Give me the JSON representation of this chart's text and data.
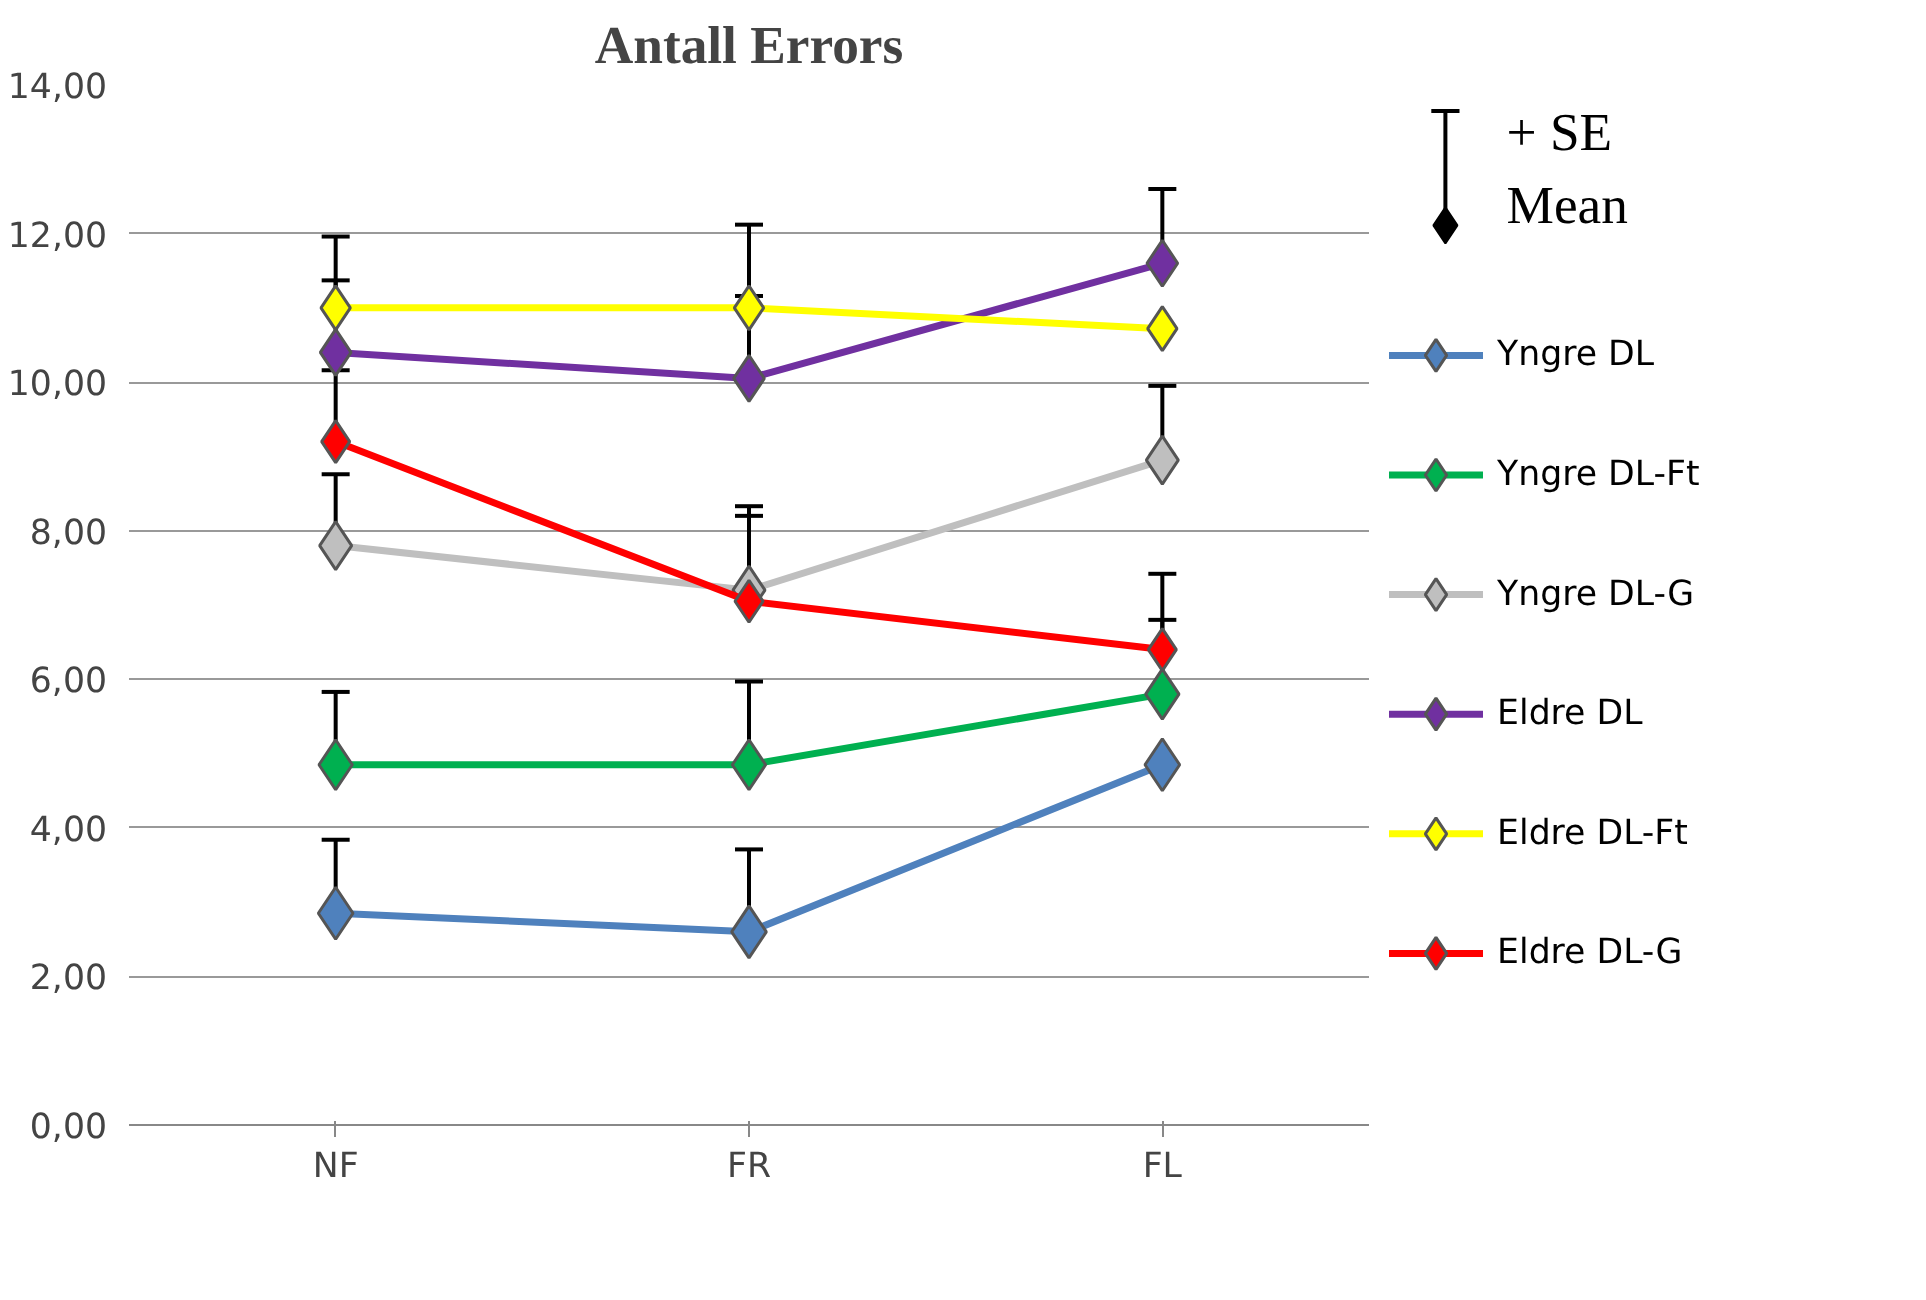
{
  "chart_data": {
    "type": "line",
    "title": "Antall Errors",
    "categories": [
      "NF",
      "FR",
      "FL"
    ],
    "ylim": [
      0,
      14
    ],
    "yticks": [
      {
        "value": 0,
        "label": "0,00"
      },
      {
        "value": 2,
        "label": "2,00"
      },
      {
        "value": 4,
        "label": "4,00"
      },
      {
        "value": 6,
        "label": "6,00"
      },
      {
        "value": 8,
        "label": "8,00"
      },
      {
        "value": 10,
        "label": "10,00"
      },
      {
        "value": 12,
        "label": "12,00"
      },
      {
        "value": 14,
        "label": "14,00"
      }
    ],
    "grid": "y",
    "legend": "right",
    "marker": "diamond",
    "annotations": [
      "+ SE",
      "Mean"
    ],
    "series": [
      {
        "name": "Yngre DL",
        "color": "#4f81bd",
        "values": [
          2.85,
          2.6,
          4.85
        ],
        "errors": [
          [
            2.85,
            3.84
          ],
          [
            2.6,
            3.71
          ],
          null
        ]
      },
      {
        "name": "Yngre DL-Ft",
        "color": "#00b050",
        "values": [
          4.85,
          4.85,
          5.8
        ],
        "errors": [
          [
            4.85,
            5.83
          ],
          [
            4.85,
            5.97
          ],
          [
            5.8,
            6.8
          ]
        ]
      },
      {
        "name": "Yngre DL-G",
        "color": "#bfbfbf",
        "values": [
          7.8,
          7.2,
          8.95
        ],
        "errors": [
          [
            7.8,
            8.76
          ],
          [
            7.2,
            8.33
          ],
          [
            8.95,
            9.95
          ]
        ]
      },
      {
        "name": "Eldre DL",
        "color": "#7030a0",
        "values": [
          10.4,
          10.05,
          11.6
        ],
        "errors": [
          [
            10.4,
            11.37
          ],
          [
            10.05,
            11.16
          ],
          [
            11.6,
            12.6
          ]
        ]
      },
      {
        "name": "Eldre DL-Ft",
        "color": "#ffff00",
        "values": [
          11.0,
          11.0,
          10.72
        ],
        "errors": [
          [
            11.0,
            11.96
          ],
          [
            11.0,
            12.12
          ],
          null
        ]
      },
      {
        "name": "Eldre DL-G",
        "color": "#ff0000",
        "values": [
          9.2,
          7.05,
          6.4
        ],
        "errors": [
          [
            9.2,
            10.16
          ],
          [
            7.05,
            8.2
          ],
          [
            6.4,
            7.42
          ]
        ]
      }
    ]
  }
}
